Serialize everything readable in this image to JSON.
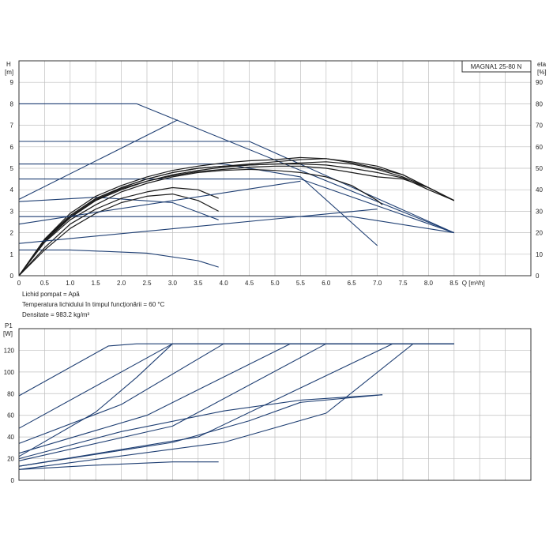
{
  "chart_data": [
    {
      "type": "line",
      "name": "pump-curve",
      "title": "",
      "model_label": "MAGNA1 25-80 N",
      "xlabel": "Q [m³/h]",
      "ylabel_lines": [
        "H",
        "[m]"
      ],
      "y2label_lines": [
        "eta",
        "[%]"
      ],
      "xlim": [
        0,
        10
      ],
      "ylim": [
        0,
        10
      ],
      "y2lim": [
        0,
        100
      ],
      "grid": true,
      "x_ticks": [
        "0",
        "0.5",
        "1.0",
        "1.5",
        "2.0",
        "2.5",
        "3.0",
        "3.5",
        "4.0",
        "4.5",
        "5.0",
        "5.5",
        "6.0",
        "6.5",
        "7.0",
        "7.5",
        "8.0",
        "8.5"
      ],
      "x_tick_values": [
        0,
        0.5,
        1.0,
        1.5,
        2.0,
        2.5,
        3.0,
        3.5,
        4.0,
        4.5,
        5.0,
        5.5,
        6.0,
        6.5,
        7.0,
        7.5,
        8.0,
        8.5
      ],
      "y_ticks": [
        "0",
        "1",
        "2",
        "3",
        "4",
        "5",
        "6",
        "7",
        "8",
        "9"
      ],
      "y_tick_values": [
        0,
        1,
        2,
        3,
        4,
        5,
        6,
        7,
        8,
        9
      ],
      "y2_ticks": [
        "0",
        "10",
        "20",
        "30",
        "40",
        "50",
        "60",
        "70",
        "80",
        "90"
      ],
      "y2_tick_values": [
        0,
        10,
        20,
        30,
        40,
        50,
        60,
        70,
        80,
        90
      ],
      "notes": [
        "Lichid pompat = Apă",
        "Temperatura lichidului în timpul funcționării = 60 °C",
        "Densitate = 983.2 kg/m³"
      ],
      "series": [
        {
          "role": "head",
          "x": [
            0,
            2.3,
            8.5
          ],
          "y": [
            8.0,
            8.0,
            2.0
          ]
        },
        {
          "role": "head",
          "x": [
            0,
            4.5,
            8.5
          ],
          "y": [
            6.25,
            6.25,
            2.0
          ]
        },
        {
          "role": "head",
          "x": [
            0,
            5.5,
            8.5
          ],
          "y": [
            4.5,
            4.5,
            2.0
          ]
        },
        {
          "role": "head",
          "x": [
            0,
            6.5,
            8.5
          ],
          "y": [
            2.75,
            2.75,
            2.0
          ]
        },
        {
          "role": "head",
          "x": [
            0,
            1.5,
            3.0,
            3.9
          ],
          "y": [
            3.45,
            3.65,
            3.4,
            2.6
          ]
        },
        {
          "role": "head",
          "x": [
            0,
            1.0,
            2.5,
            3.5,
            3.9
          ],
          "y": [
            1.2,
            1.2,
            1.05,
            0.7,
            0.4
          ]
        },
        {
          "role": "head",
          "x": [
            0,
            4.0,
            5.5,
            7.0
          ],
          "y": [
            5.2,
            5.2,
            4.6,
            1.4
          ]
        },
        {
          "role": "eta",
          "x": [
            0,
            0.5,
            1.0,
            1.5,
            2.0,
            2.5,
            3.0,
            3.5,
            4.0,
            4.5,
            5.0,
            5.5,
            6.0,
            6.5,
            7.0,
            7.5,
            8.0,
            8.5
          ],
          "y": [
            0,
            17,
            29,
            37,
            42,
            46,
            49,
            51,
            52.5,
            53.5,
            54,
            55,
            54.5,
            53,
            51,
            47,
            41,
            35
          ]
        },
        {
          "role": "eta",
          "x": [
            0,
            0.5,
            1.0,
            1.5,
            2.0,
            2.5,
            3.0,
            3.5,
            4.0,
            4.5,
            5.0,
            5.5,
            6.0,
            6.5,
            7.0,
            7.5,
            8.0,
            8.5
          ],
          "y": [
            0,
            16,
            27,
            35,
            40,
            44,
            47,
            49,
            50.5,
            51.5,
            52,
            52,
            51.5,
            50,
            48,
            45.5,
            40,
            35
          ]
        },
        {
          "role": "eta",
          "x": [
            0,
            0.5,
            1.0,
            1.5,
            2.0,
            2.5,
            3.0,
            3.5,
            4.0,
            4.5,
            5.0,
            5.5,
            6.0,
            6.5,
            7.0,
            7.1
          ],
          "y": [
            0,
            15.5,
            26,
            33,
            39,
            43,
            46,
            48,
            49,
            49.5,
            49,
            48,
            46,
            42,
            35,
            33
          ]
        },
        {
          "role": "eta",
          "x": [
            0,
            0.5,
            1.0,
            1.5,
            2.0,
            2.5,
            3.0,
            3.5,
            3.9
          ],
          "y": [
            0,
            13,
            24,
            31,
            36,
            39,
            41,
            40,
            36
          ]
        },
        {
          "role": "eta",
          "x": [
            0,
            0.5,
            1.0,
            1.5,
            2.0,
            2.5,
            3.0,
            3.5,
            4.0,
            4.5,
            5.0,
            5.5,
            6.0,
            6.5,
            7.0,
            7.5,
            8.0,
            8.5
          ],
          "y": [
            0,
            17,
            28,
            36,
            41,
            45,
            48,
            50,
            51,
            52,
            53,
            54,
            54.5,
            52.5,
            50,
            47,
            41,
            35
          ]
        },
        {
          "role": "eta",
          "x": [
            0,
            0.5,
            1.0,
            1.5,
            2.0,
            2.5,
            3.0,
            3.5,
            4.0,
            4.5,
            5.0,
            5.5,
            6.0,
            6.5,
            7.0,
            7.5,
            8.0,
            8.5
          ],
          "y": [
            0,
            16.5,
            27.5,
            35.5,
            40.5,
            44,
            46.5,
            48.5,
            49.5,
            50.5,
            51,
            51,
            50,
            48,
            46,
            45,
            41,
            35
          ]
        },
        {
          "role": "eta",
          "x": [
            0,
            0.5,
            1.0,
            1.5,
            2.0,
            2.5,
            3.0,
            3.5,
            4.0,
            4.5,
            5.0,
            5.5,
            6.0,
            6.5,
            7.0,
            7.5,
            8.0,
            8.5
          ],
          "y": [
            0,
            16,
            27,
            35,
            41,
            45,
            48,
            50,
            51,
            51.5,
            52,
            52.5,
            53,
            52,
            49.5,
            46,
            41,
            35
          ]
        },
        {
          "role": "eta",
          "x": [
            0,
            0.5,
            1.0,
            1.5,
            2.0,
            2.5,
            3.0,
            3.5,
            3.9
          ],
          "y": [
            0,
            12,
            22,
            29,
            34,
            37,
            38,
            35,
            30
          ]
        },
        {
          "role": "auto",
          "x": [
            0,
            3.1
          ],
          "y": [
            3.55,
            7.25
          ]
        },
        {
          "role": "auto",
          "x": [
            0,
            5.5
          ],
          "y": [
            2.4,
            4.4
          ]
        },
        {
          "role": "auto",
          "x": [
            0,
            7.0
          ],
          "y": [
            1.5,
            3.1
          ]
        }
      ]
    },
    {
      "type": "line",
      "name": "power-curve",
      "title": "",
      "xlabel": "",
      "ylabel_lines": [
        "P1",
        "[W]"
      ],
      "xlim": [
        0,
        10
      ],
      "ylim": [
        0,
        140
      ],
      "grid": true,
      "y_ticks": [
        "0",
        "20",
        "40",
        "60",
        "80",
        "100",
        "120"
      ],
      "y_tick_values": [
        0,
        20,
        40,
        60,
        80,
        100,
        120
      ],
      "series": [
        {
          "x": [
            0,
            1.75,
            2.3,
            8.5
          ],
          "y": [
            78,
            124,
            126,
            126
          ]
        },
        {
          "x": [
            0,
            3.0,
            8.5
          ],
          "y": [
            48,
            126,
            126
          ]
        },
        {
          "x": [
            0,
            1.5,
            2.3,
            3.0
          ],
          "y": [
            22,
            63,
            95,
            126
          ]
        },
        {
          "x": [
            0,
            2.0,
            4.0,
            8.5
          ],
          "y": [
            34,
            70,
            126,
            126
          ]
        },
        {
          "x": [
            0,
            2.5,
            5.3,
            8.5
          ],
          "y": [
            25,
            60,
            126,
            126
          ]
        },
        {
          "x": [
            0,
            3.0,
            6.0,
            8.5
          ],
          "y": [
            18,
            50,
            126,
            126
          ]
        },
        {
          "x": [
            0,
            3.5,
            7.3,
            8.5
          ],
          "y": [
            13,
            40,
            126,
            126
          ]
        },
        {
          "x": [
            0,
            4.0,
            6.0,
            7.7,
            8.5
          ],
          "y": [
            10,
            35,
            62,
            126,
            126
          ]
        },
        {
          "x": [
            0,
            2.0,
            4.0,
            5.5,
            7.1
          ],
          "y": [
            20,
            45,
            64,
            74,
            79
          ]
        },
        {
          "x": [
            0,
            3.0,
            4.5,
            5.5,
            7.1
          ],
          "y": [
            13,
            35,
            55,
            72,
            79
          ]
        },
        {
          "x": [
            0,
            1.5,
            3.0,
            3.9
          ],
          "y": [
            10,
            14,
            17,
            17
          ]
        }
      ]
    }
  ]
}
